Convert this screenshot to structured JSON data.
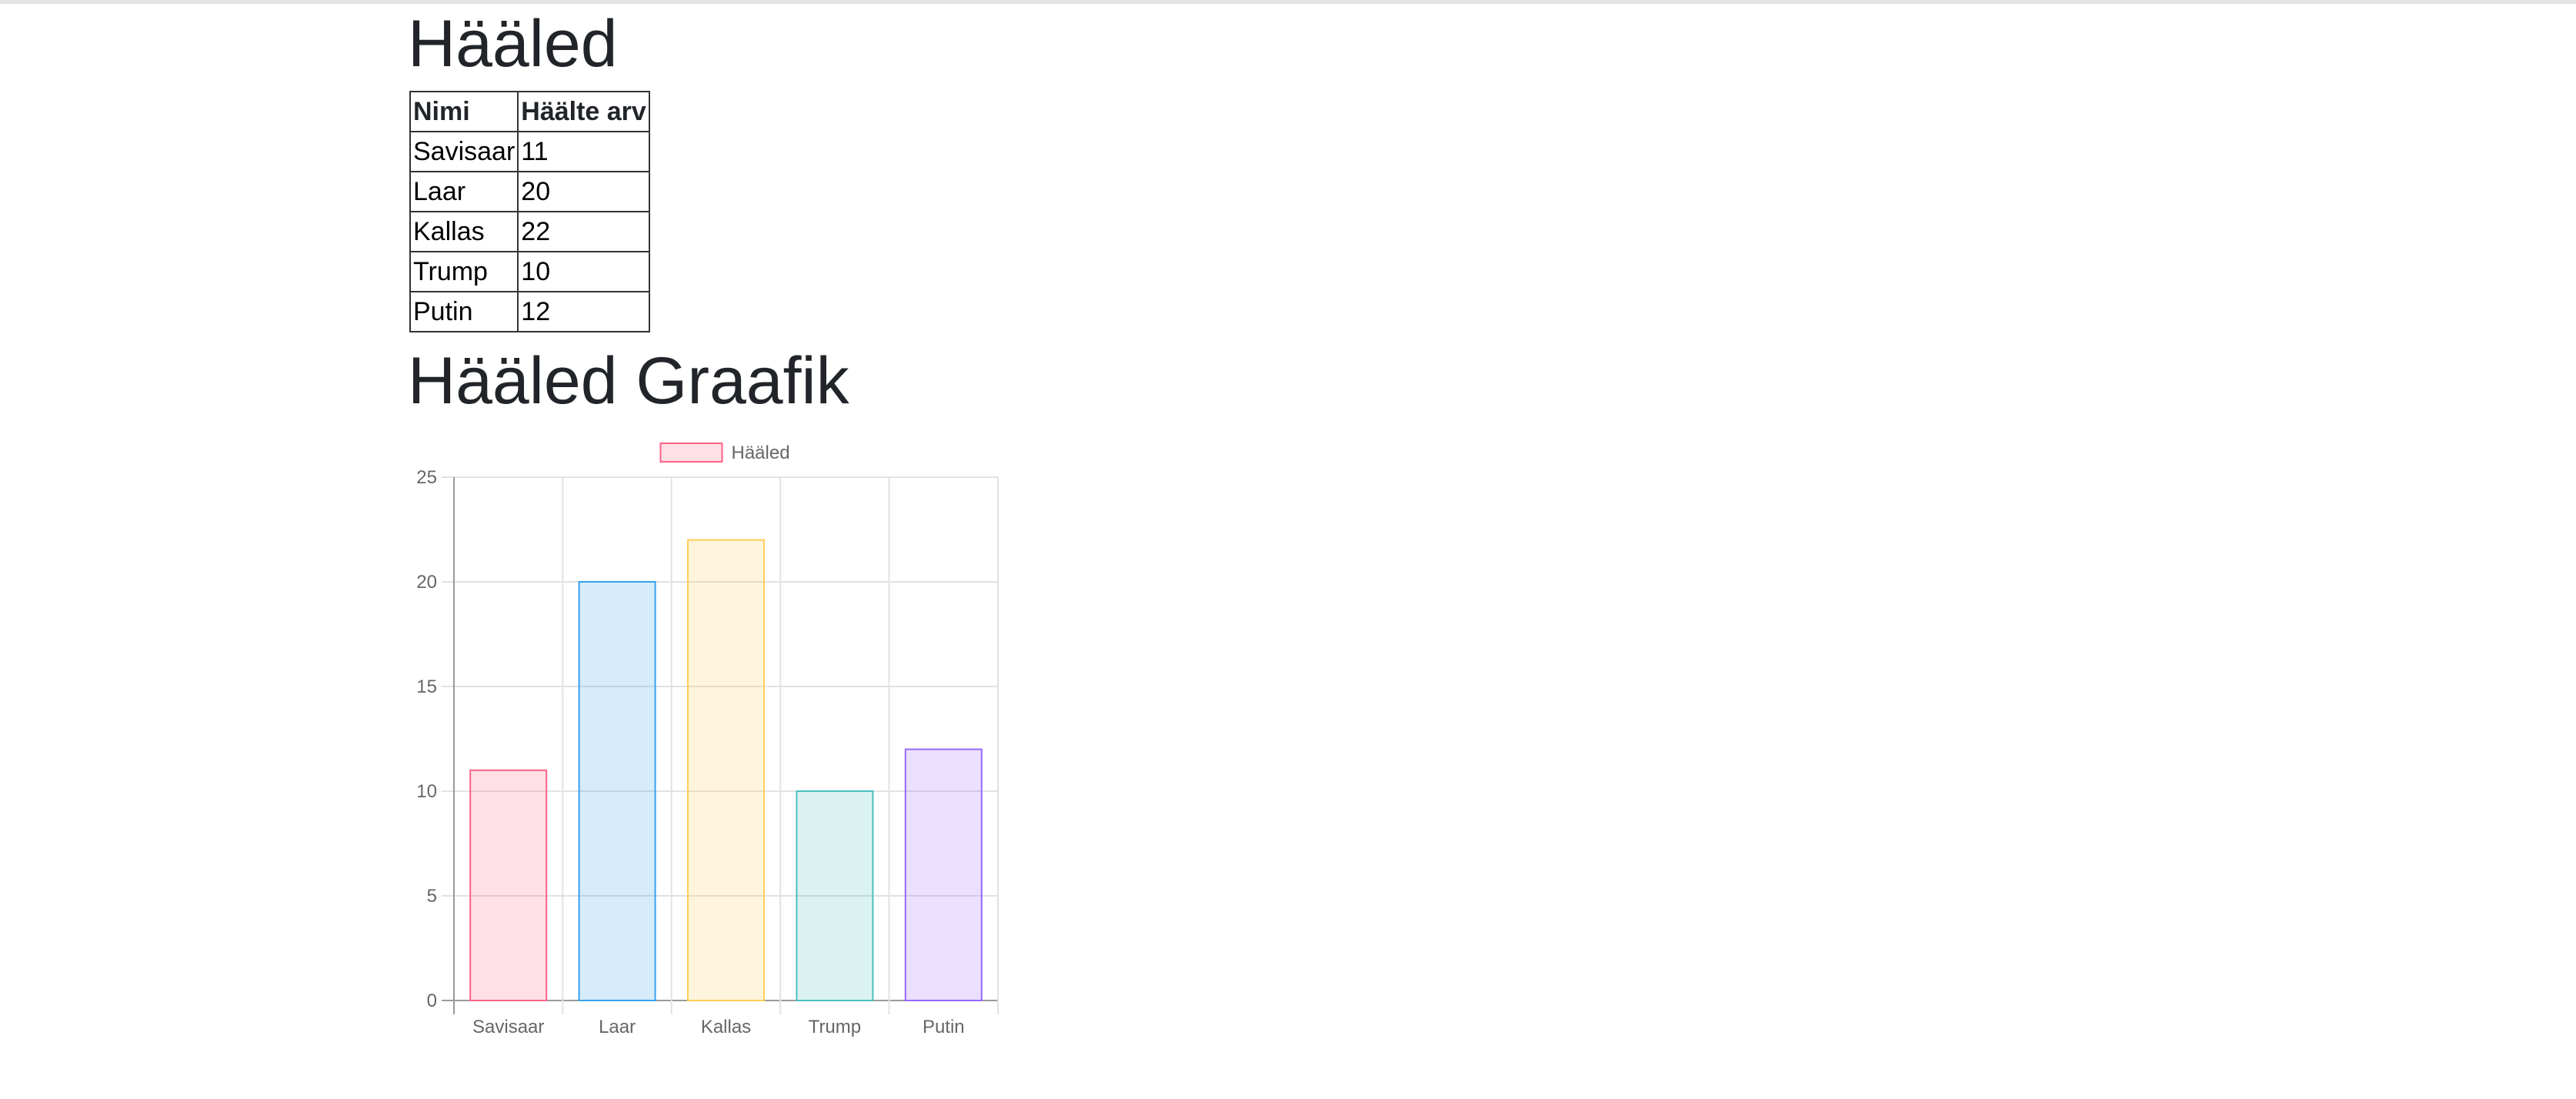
{
  "votes_heading": "Hääled",
  "table": {
    "headers": [
      "Nimi",
      "Häälte arv"
    ],
    "rows": [
      [
        "Savisaar",
        "11"
      ],
      [
        "Laar",
        "20"
      ],
      [
        "Kallas",
        "22"
      ],
      [
        "Trump",
        "10"
      ],
      [
        "Putin",
        "12"
      ]
    ]
  },
  "chart_heading": "Hääled Graafik",
  "chart_data": {
    "type": "bar",
    "categories": [
      "Savisaar",
      "Laar",
      "Kallas",
      "Trump",
      "Putin"
    ],
    "series": [
      {
        "name": "Hääled",
        "values": [
          11,
          20,
          22,
          10,
          12
        ]
      }
    ],
    "ylim": [
      0,
      25
    ],
    "yticks": [
      0,
      5,
      10,
      15,
      20,
      25
    ],
    "grid": true,
    "legend": "top-center",
    "legend_color": "#ff6384",
    "bar_colors": [
      "#ff6384",
      "#36a2eb",
      "#ffce56",
      "#4bc0c0",
      "#9966ff"
    ],
    "title": "",
    "xlabel": "",
    "ylabel": ""
  }
}
